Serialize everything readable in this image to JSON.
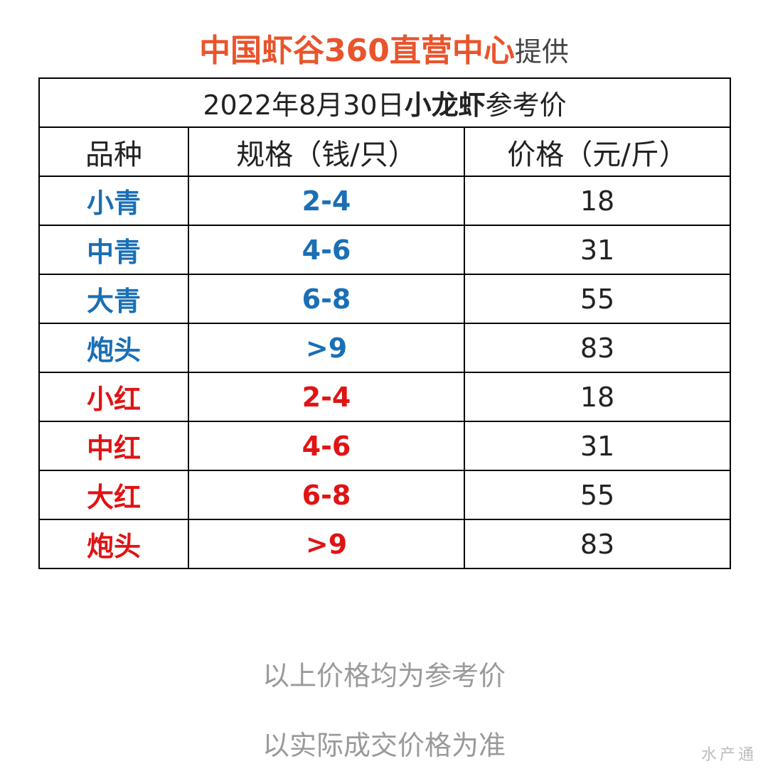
{
  "header": {
    "org": "中国虾谷360直营中心",
    "suffix": "提供"
  },
  "table": {
    "caption_date": "2022年8月30日",
    "caption_product": "小龙虾",
    "caption_suffix": "参考价",
    "columns": [
      "品种",
      "规格（钱/只）",
      "价格（元/斤）"
    ],
    "rows": [
      {
        "variety": "小青",
        "spec": "2-4",
        "price": "18",
        "color": "#1a6fb5"
      },
      {
        "variety": "中青",
        "spec": "4-6",
        "price": "31",
        "color": "#1a6fb5"
      },
      {
        "variety": "大青",
        "spec": "6-8",
        "price": "55",
        "color": "#1a6fb5"
      },
      {
        "variety": "炮头",
        "spec": ">9",
        "price": "83",
        "color": "#1a6fb5"
      },
      {
        "variety": "小红",
        "spec": "2-4",
        "price": "18",
        "color": "#e01414"
      },
      {
        "variety": "中红",
        "spec": "4-6",
        "price": "31",
        "color": "#e01414"
      },
      {
        "variety": "大红",
        "spec": "6-8",
        "price": "55",
        "color": "#e01414"
      },
      {
        "variety": "炮头",
        "spec": ">9",
        "price": "83",
        "color": "#e01414"
      }
    ]
  },
  "notes": {
    "line1": "以上价格均为参考价",
    "line2": "以实际成交价格为准"
  },
  "watermark": "水产通",
  "colors": {
    "org": "#e9542c",
    "blue_rows": "#1a6fb5",
    "red_rows": "#e01414",
    "note": "#9a9a9a"
  }
}
